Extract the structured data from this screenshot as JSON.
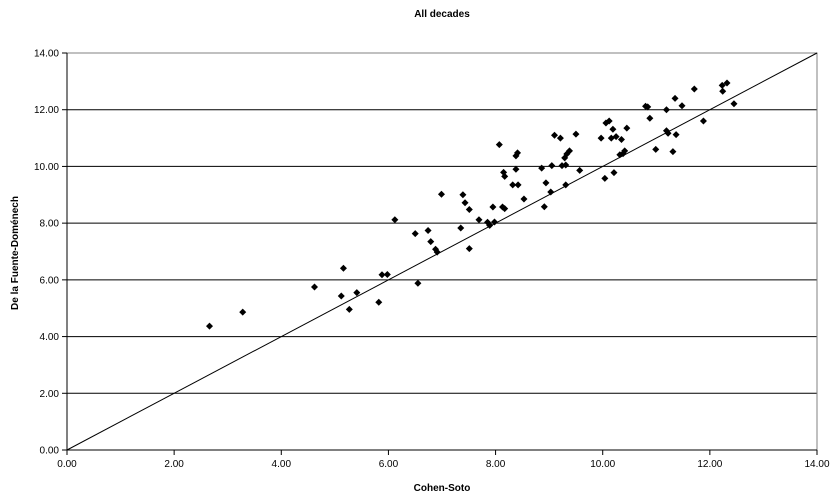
{
  "chart_data": {
    "type": "scatter",
    "title": "All decades",
    "xlabel": "Cohen-Soto",
    "ylabel": "De la Fuente-Doménech",
    "xlim": [
      0,
      14
    ],
    "ylim": [
      0,
      14
    ],
    "xticks": [
      "0.00",
      "2.00",
      "4.00",
      "6.00",
      "8.00",
      "10.00",
      "12.00",
      "14.00"
    ],
    "yticks": [
      "0.00",
      "2.00",
      "4.00",
      "6.00",
      "8.00",
      "10.00",
      "12.00",
      "14.00"
    ],
    "grid": "horizontal",
    "reference_line": {
      "x": [
        0,
        14
      ],
      "y": [
        0,
        14
      ]
    },
    "marker": "diamond",
    "marker_color": "#000000",
    "series": [
      {
        "points": [
          [
            2.66,
            4.37
          ],
          [
            3.28,
            4.86
          ],
          [
            4.62,
            5.75
          ],
          [
            5.12,
            5.43
          ],
          [
            5.16,
            6.41
          ],
          [
            5.27,
            4.96
          ],
          [
            5.41,
            5.55
          ],
          [
            5.82,
            5.21
          ],
          [
            5.88,
            6.18
          ],
          [
            5.98,
            6.19
          ],
          [
            6.12,
            8.12
          ],
          [
            6.5,
            7.63
          ],
          [
            6.55,
            5.88
          ],
          [
            6.74,
            7.74
          ],
          [
            6.79,
            7.35
          ],
          [
            6.88,
            7.08
          ],
          [
            6.91,
            6.98
          ],
          [
            6.99,
            9.02
          ],
          [
            7.35,
            7.83
          ],
          [
            7.39,
            9.0
          ],
          [
            7.43,
            8.72
          ],
          [
            7.51,
            8.48
          ],
          [
            7.51,
            7.1
          ],
          [
            7.69,
            8.12
          ],
          [
            7.85,
            8.03
          ],
          [
            7.89,
            7.92
          ],
          [
            7.95,
            8.57
          ],
          [
            7.98,
            8.04
          ],
          [
            8.07,
            10.77
          ],
          [
            8.13,
            8.57
          ],
          [
            8.15,
            9.79
          ],
          [
            8.17,
            8.51
          ],
          [
            8.17,
            9.65
          ],
          [
            8.32,
            9.35
          ],
          [
            8.38,
            9.9
          ],
          [
            8.38,
            10.37
          ],
          [
            8.41,
            10.48
          ],
          [
            8.42,
            9.35
          ],
          [
            8.53,
            8.85
          ],
          [
            8.86,
            9.94
          ],
          [
            8.91,
            8.58
          ],
          [
            8.94,
            9.42
          ],
          [
            9.03,
            9.1
          ],
          [
            9.05,
            10.03
          ],
          [
            9.1,
            11.1
          ],
          [
            9.21,
            11.0
          ],
          [
            9.24,
            10.03
          ],
          [
            9.29,
            10.3
          ],
          [
            9.31,
            10.05
          ],
          [
            9.31,
            9.35
          ],
          [
            9.33,
            10.44
          ],
          [
            9.38,
            10.55
          ],
          [
            9.5,
            11.14
          ],
          [
            9.57,
            9.86
          ],
          [
            9.97,
            11.0
          ],
          [
            10.04,
            9.58
          ],
          [
            10.06,
            11.53
          ],
          [
            10.12,
            11.6
          ],
          [
            10.16,
            11.0
          ],
          [
            10.19,
            11.31
          ],
          [
            10.21,
            9.78
          ],
          [
            10.25,
            11.05
          ],
          [
            10.32,
            10.41
          ],
          [
            10.35,
            10.95
          ],
          [
            10.38,
            10.45
          ],
          [
            10.41,
            10.55
          ],
          [
            10.45,
            11.35
          ],
          [
            10.8,
            12.12
          ],
          [
            10.84,
            12.1
          ],
          [
            10.88,
            11.7
          ],
          [
            10.99,
            10.6
          ],
          [
            11.19,
            12.0
          ],
          [
            11.19,
            11.26
          ],
          [
            11.22,
            11.17
          ],
          [
            11.31,
            10.52
          ],
          [
            11.35,
            12.4
          ],
          [
            11.37,
            11.12
          ],
          [
            11.48,
            12.14
          ],
          [
            11.71,
            12.73
          ],
          [
            11.88,
            11.6
          ],
          [
            12.23,
            12.86
          ],
          [
            12.24,
            12.65
          ],
          [
            12.32,
            12.94
          ],
          [
            12.45,
            12.21
          ]
        ]
      }
    ]
  }
}
